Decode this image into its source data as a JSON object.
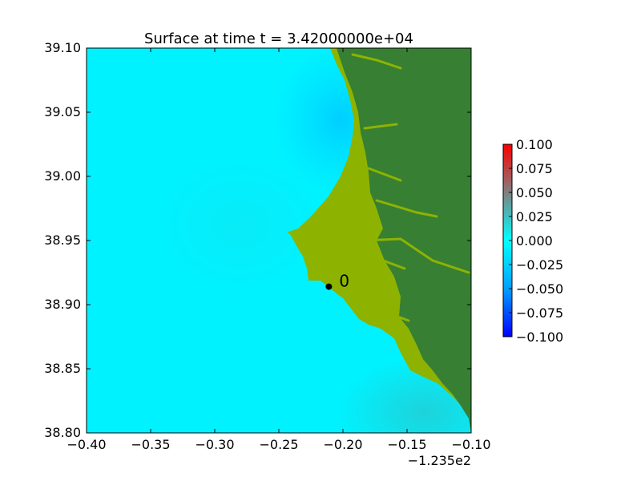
{
  "chart_data": {
    "type": "heatmap",
    "title": "Surface at time t = 3.42000000e+04",
    "xlabel": "",
    "ylabel": "",
    "xlim": [
      -0.4,
      -0.1
    ],
    "ylim": [
      38.8,
      39.1
    ],
    "x_ticks": [
      "−0.40",
      "−0.35",
      "−0.30",
      "−0.25",
      "−0.20",
      "−0.15",
      "−0.10"
    ],
    "y_ticks": [
      "39.10",
      "39.05",
      "39.00",
      "38.95",
      "38.90",
      "38.85",
      "38.80"
    ],
    "x_offset_label": "−1.235e2",
    "colorbar": {
      "range": [
        -0.1,
        0.1
      ],
      "ticks": [
        "0.100",
        "0.075",
        "0.050",
        "0.025",
        "0.000",
        "−0.025",
        "−0.050",
        "−0.075",
        "−0.100"
      ],
      "colors": [
        "#0000ff",
        "#00bfff",
        "#00ffff",
        "#808080",
        "#ff0000"
      ]
    },
    "gauge": {
      "label": "0",
      "x": -0.211,
      "y": 38.914
    },
    "colors": {
      "water": "#00ffff",
      "land_high": "#377f33",
      "land_low": "#8db300"
    }
  }
}
